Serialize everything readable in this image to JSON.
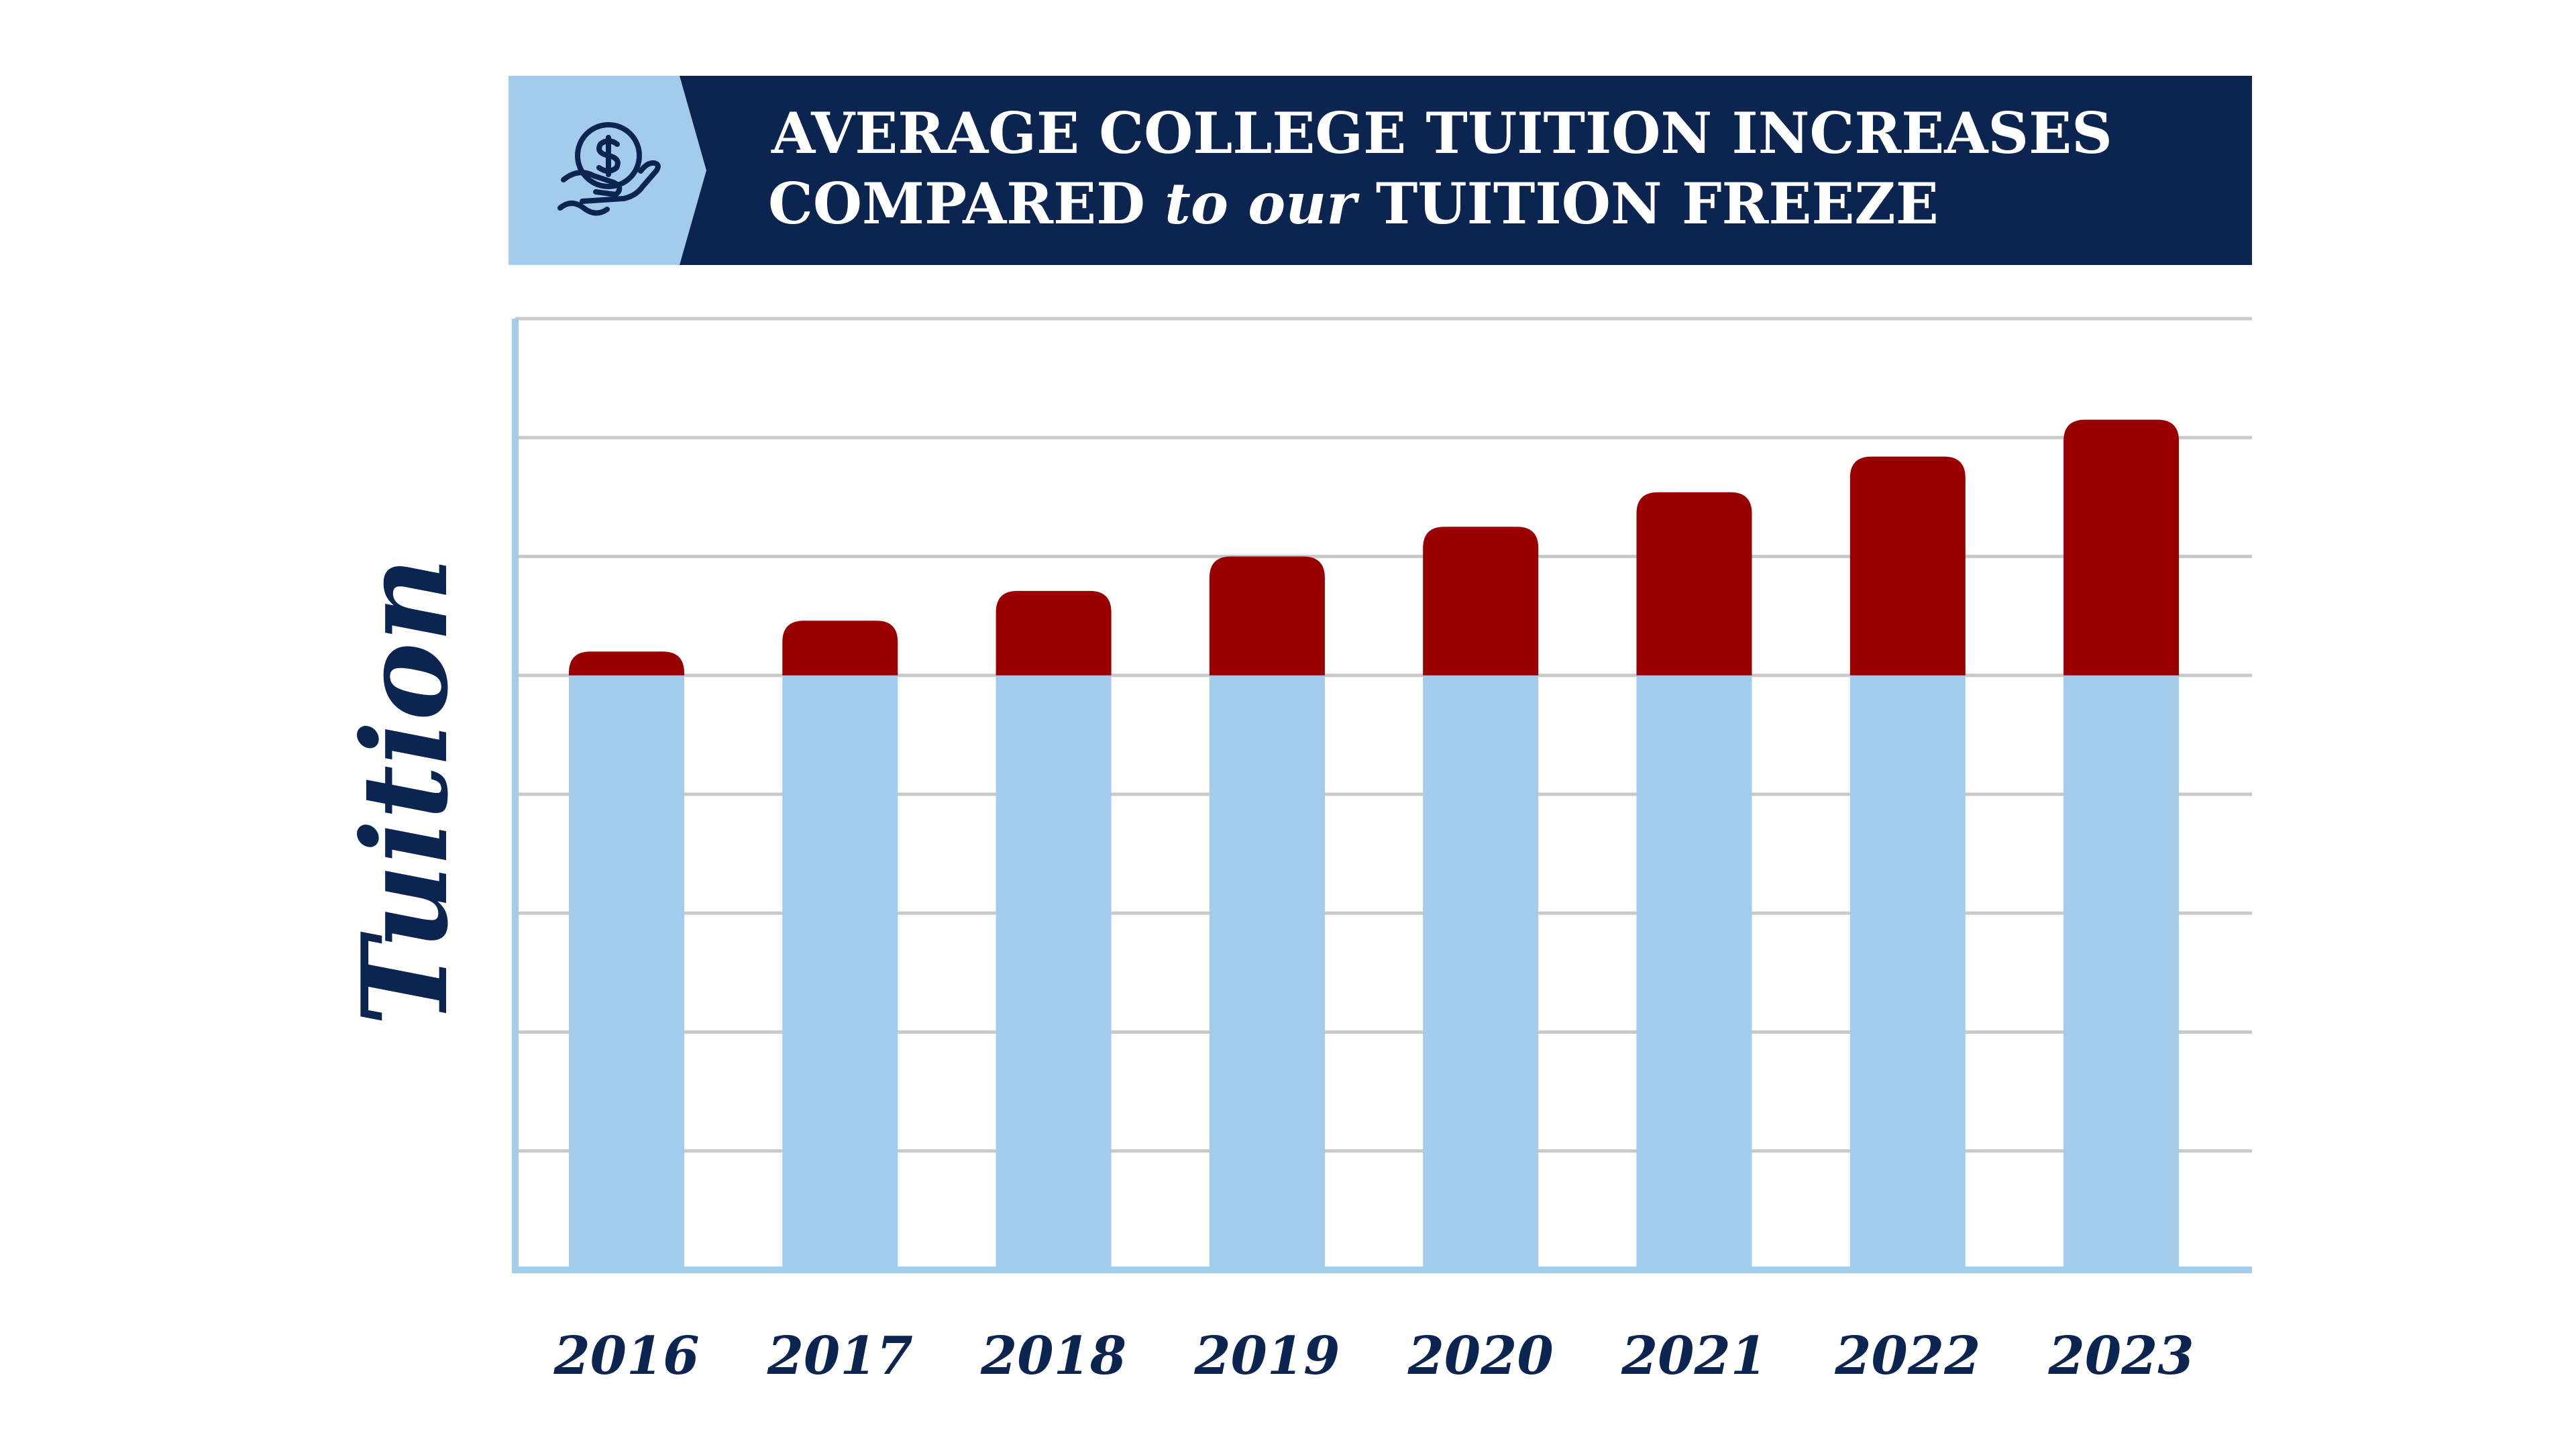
{
  "title": {
    "line1": "AVERAGE COLLEGE TUITION INCREASES",
    "line2_pre": "COMPARED ",
    "line2_italic": "to our",
    "line2_post": " TUITION FREEZE",
    "icon": "hand-holding-dollar-icon"
  },
  "colors": {
    "banner_dark": "#0b2550",
    "banner_light": "#a2cbec",
    "frozen": "#a2cbec",
    "increase": "#990000",
    "axis": "#a2cbec",
    "grid": "#c9c9c9",
    "text": "#0b2550"
  },
  "chart_data": {
    "type": "bar",
    "stacked": true,
    "categories": [
      "2016",
      "2017",
      "2018",
      "2019",
      "2020",
      "2021",
      "2022",
      "2023"
    ],
    "ylabel": "Tuition",
    "xlabel": "",
    "ylim": [
      0,
      8
    ],
    "grid": true,
    "y_tick_labels_shown": false,
    "series": [
      {
        "color": "#a2cbec",
        "values": [
          5,
          5,
          5,
          5,
          5,
          5,
          5,
          5
        ]
      },
      {
        "color": "#990000",
        "values": [
          0.2,
          0.46,
          0.71,
          1.0,
          1.25,
          1.54,
          1.84,
          2.15
        ]
      }
    ]
  }
}
